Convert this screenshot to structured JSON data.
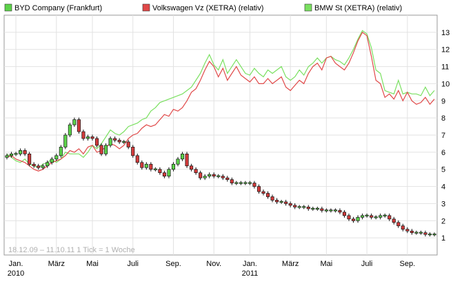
{
  "chart_data": {
    "type": "candlestick+line",
    "legend": [
      {
        "name": "BYD Company (Frankfurt)",
        "color": "#5cd24a",
        "kind": "candlestick"
      },
      {
        "name": "Volkswagen Vz (XETRA) (relativ)",
        "color": "#e04848",
        "kind": "line"
      },
      {
        "name": "BMW St (XETRA) (relativ)",
        "color": "#7ae060",
        "kind": "line"
      }
    ],
    "legend_placement": "top",
    "footnote": "18.12.09 – 11.10.11   1 Tick = 1 Woche",
    "x_labels": [
      {
        "week": 2,
        "label": "Jan.",
        "year": "2010"
      },
      {
        "week": 11,
        "label": "März",
        "year": ""
      },
      {
        "week": 19,
        "label": "Mai",
        "year": ""
      },
      {
        "week": 28,
        "label": "Juli",
        "year": ""
      },
      {
        "week": 37,
        "label": "Sep.",
        "year": ""
      },
      {
        "week": 46,
        "label": "Nov.",
        "year": ""
      },
      {
        "week": 54,
        "label": "Jan.",
        "year": "2011"
      },
      {
        "week": 63,
        "label": "März",
        "year": ""
      },
      {
        "week": 71,
        "label": "Mai",
        "year": ""
      },
      {
        "week": 80,
        "label": "Juli",
        "year": ""
      },
      {
        "week": 89,
        "label": "Sep.",
        "year": ""
      }
    ],
    "y_axis": {
      "position": "right",
      "min": 0,
      "max": 14,
      "ticks": [
        1,
        2,
        3,
        4,
        5,
        6,
        7,
        8,
        9,
        10,
        11,
        12,
        13
      ]
    },
    "grid": true,
    "weeks": 96,
    "candles_close": [
      5.8,
      5.9,
      5.9,
      6.1,
      5.9,
      5.3,
      5.2,
      5.1,
      5.2,
      5.4,
      5.6,
      5.8,
      6.3,
      7.0,
      7.6,
      7.9,
      7.2,
      6.8,
      6.9,
      6.8,
      6.4,
      5.9,
      6.4,
      6.8,
      6.7,
      6.6,
      6.6,
      6.3,
      5.8,
      5.4,
      5.1,
      5.3,
      5.0,
      5.0,
      4.8,
      4.6,
      5.0,
      5.3,
      5.6,
      5.9,
      5.2,
      5.0,
      4.8,
      4.5,
      4.6,
      4.7,
      4.6,
      4.6,
      4.5,
      4.4,
      4.2,
      4.2,
      4.2,
      4.2,
      4.2,
      4.0,
      3.7,
      3.6,
      3.4,
      3.2,
      3.1,
      3.1,
      3.0,
      2.9,
      2.8,
      2.8,
      2.8,
      2.7,
      2.7,
      2.7,
      2.6,
      2.6,
      2.6,
      2.6,
      2.5,
      2.3,
      2.1,
      2.0,
      2.2,
      2.3,
      2.3,
      2.2,
      2.2,
      2.3,
      2.3,
      2.1,
      1.9,
      1.7,
      1.5,
      1.4,
      1.3,
      1.3,
      1.3,
      1.2,
      1.2,
      1.2
    ],
    "vw_relative": [
      5.7,
      5.8,
      5.6,
      5.5,
      5.4,
      5.2,
      5.0,
      4.9,
      5.0,
      5.2,
      5.4,
      5.5,
      5.6,
      5.8,
      6.1,
      6.0,
      6.2,
      5.9,
      6.3,
      6.4,
      6.0,
      6.1,
      6.3,
      6.5,
      6.4,
      6.2,
      6.4,
      6.8,
      7.0,
      7.1,
      7.4,
      7.6,
      7.5,
      7.6,
      7.9,
      8.2,
      8.1,
      8.5,
      8.4,
      8.6,
      9.0,
      9.5,
      9.7,
      10.2,
      10.8,
      11.3,
      11.0,
      10.4,
      10.9,
      10.2,
      10.6,
      11.0,
      10.5,
      10.3,
      10.1,
      10.4,
      10.0,
      10.0,
      10.3,
      10.0,
      10.2,
      10.4,
      9.8,
      9.6,
      9.9,
      10.2,
      10.0,
      10.6,
      11.0,
      11.2,
      10.8,
      11.5,
      11.6,
      11.2,
      11.0,
      10.8,
      11.2,
      11.8,
      12.5,
      13.0,
      12.8,
      11.6,
      10.2,
      10.0,
      9.2,
      9.4,
      9.1,
      9.6,
      9.0,
      9.5,
      9.0,
      8.8,
      8.9,
      9.2,
      8.8,
      9.1
    ],
    "bmw_relative": [
      5.9,
      5.7,
      5.5,
      5.4,
      5.6,
      5.3,
      5.2,
      5.1,
      5.3,
      5.4,
      5.6,
      5.4,
      5.6,
      6.0,
      5.9,
      5.9,
      5.9,
      5.7,
      6.0,
      6.4,
      6.2,
      6.5,
      6.9,
      7.3,
      7.1,
      7.0,
      7.2,
      7.5,
      7.6,
      7.7,
      7.9,
      8.0,
      8.4,
      8.6,
      8.9,
      9.0,
      9.1,
      9.2,
      9.3,
      9.4,
      9.6,
      9.8,
      10.2,
      10.6,
      11.2,
      11.7,
      11.1,
      10.8,
      11.4,
      10.6,
      11.0,
      11.4,
      11.0,
      10.6,
      10.5,
      10.9,
      10.6,
      10.4,
      10.8,
      10.6,
      10.8,
      11.0,
      10.4,
      10.2,
      10.4,
      10.8,
      10.5,
      11.0,
      11.2,
      11.5,
      11.2,
      11.5,
      11.6,
      11.4,
      11.3,
      11.1,
      11.5,
      12.0,
      12.6,
      13.1,
      12.9,
      12.1,
      10.8,
      10.6,
      9.6,
      9.5,
      9.4,
      10.2,
      9.4,
      9.5,
      9.4,
      9.4,
      9.3,
      9.8,
      9.3,
      9.6
    ]
  }
}
